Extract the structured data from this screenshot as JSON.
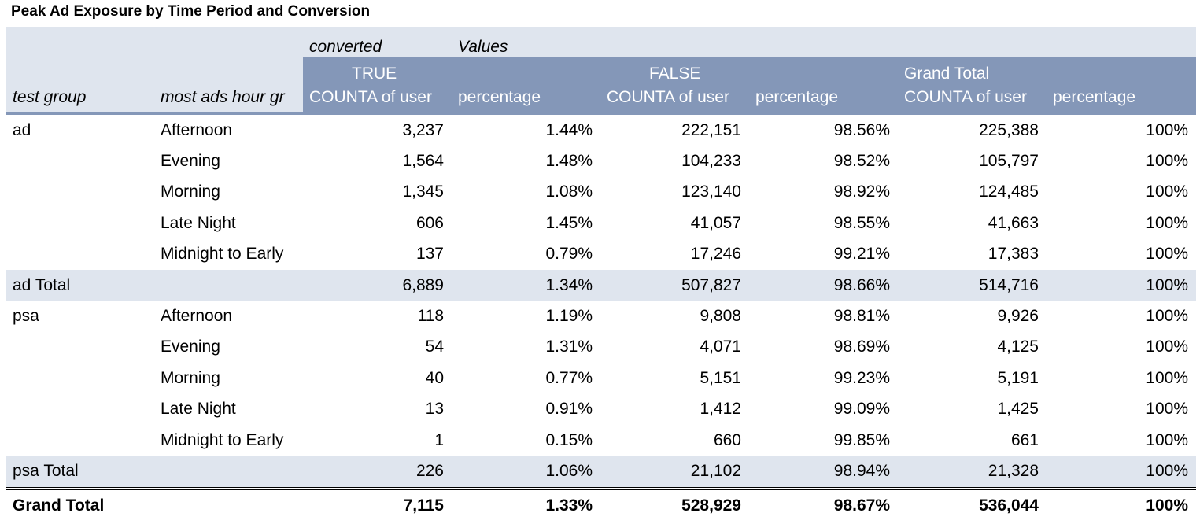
{
  "title": "Peak Ad Exposure by Time Period and Conversion",
  "header": {
    "converted_label": "converted",
    "values_label": "Values",
    "row_field_1": "test group",
    "row_field_2": "most ads hour gr",
    "groups": [
      "TRUE",
      "FALSE",
      "Grand Total"
    ],
    "measure_1": "COUNTA of user",
    "measure_2": "percentage"
  },
  "groups": [
    {
      "name": "ad",
      "rows": [
        {
          "label": "Afternoon",
          "values": [
            "3,237",
            "1.44%",
            "222,151",
            "98.56%",
            "225,388",
            "100%"
          ]
        },
        {
          "label": "Evening",
          "values": [
            "1,564",
            "1.48%",
            "104,233",
            "98.52%",
            "105,797",
            "100%"
          ]
        },
        {
          "label": "Morning",
          "values": [
            "1,345",
            "1.08%",
            "123,140",
            "98.92%",
            "124,485",
            "100%"
          ]
        },
        {
          "label": "Late Night",
          "values": [
            "606",
            "1.45%",
            "41,057",
            "98.55%",
            "41,663",
            "100%"
          ]
        },
        {
          "label": "Midnight to Early",
          "values": [
            "137",
            "0.79%",
            "17,246",
            "99.21%",
            "17,383",
            "100%"
          ]
        }
      ],
      "total_label": "ad Total",
      "total": [
        "6,889",
        "1.34%",
        "507,827",
        "98.66%",
        "514,716",
        "100%"
      ]
    },
    {
      "name": "psa",
      "rows": [
        {
          "label": "Afternoon",
          "values": [
            "118",
            "1.19%",
            "9,808",
            "98.81%",
            "9,926",
            "100%"
          ]
        },
        {
          "label": "Evening",
          "values": [
            "54",
            "1.31%",
            "4,071",
            "98.69%",
            "4,125",
            "100%"
          ]
        },
        {
          "label": "Morning",
          "values": [
            "40",
            "0.77%",
            "5,151",
            "99.23%",
            "5,191",
            "100%"
          ]
        },
        {
          "label": "Late Night",
          "values": [
            "13",
            "0.91%",
            "1,412",
            "99.09%",
            "1,425",
            "100%"
          ]
        },
        {
          "label": "Midnight to Early",
          "values": [
            "1",
            "0.15%",
            "660",
            "99.85%",
            "661",
            "100%"
          ]
        }
      ],
      "total_label": "psa Total",
      "total": [
        "226",
        "1.06%",
        "21,102",
        "98.94%",
        "21,328",
        "100%"
      ]
    }
  ],
  "grand_total": {
    "label": "Grand Total",
    "values": [
      "7,115",
      "1.33%",
      "528,929",
      "98.67%",
      "536,044",
      "100%"
    ]
  },
  "colors": {
    "header_fill": "#8497b8",
    "band_fill": "#dfe5ee"
  }
}
